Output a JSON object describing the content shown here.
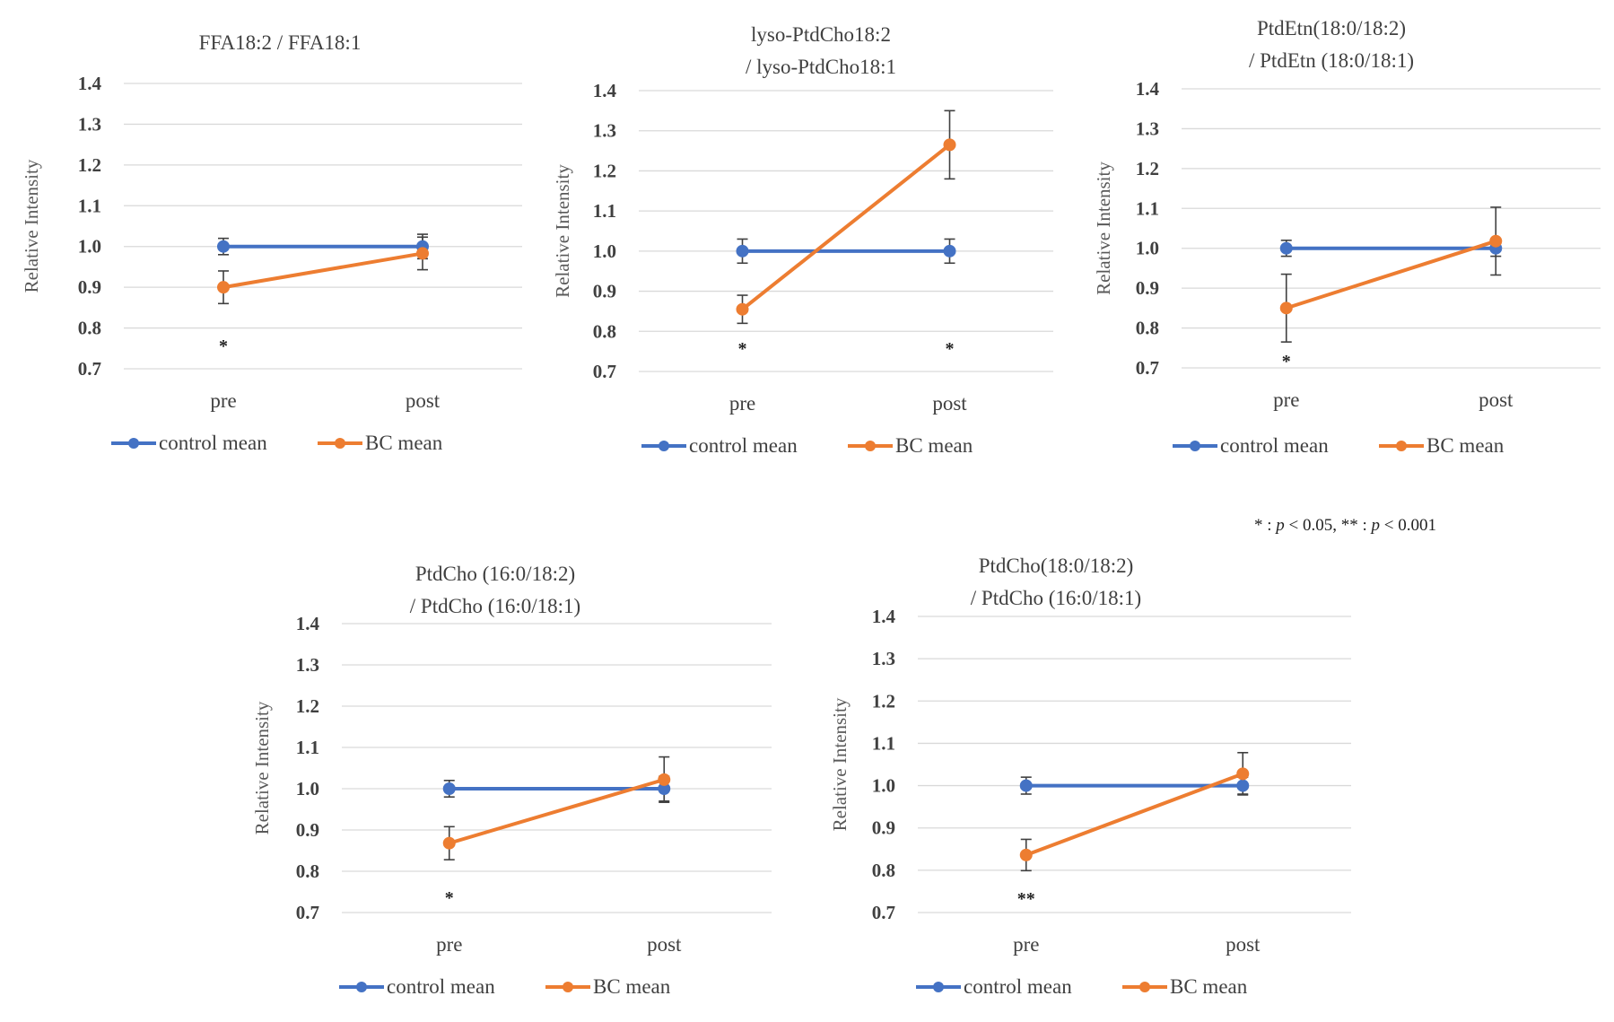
{
  "colors": {
    "control": "#4472C4",
    "bc": "#ED7D31"
  },
  "footnote": {
    "single": "* : ",
    "p1": "p",
    "lt1": " < 0.05,   ** : ",
    "p2": "p",
    "lt2": " < 0.001"
  },
  "chart_data": [
    {
      "type": "line",
      "title": [
        "FFA18:2  / FFA18:1"
      ],
      "ylabel": "Relative  Intensity",
      "ylim": [
        0.7,
        1.4
      ],
      "yticks": [
        "0.7",
        "0.8",
        "0.9",
        "1.0",
        "1.1",
        "1.2",
        "1.3",
        "1.4"
      ],
      "categories": [
        "pre",
        "post"
      ],
      "series": [
        {
          "name": "control mean",
          "values": [
            1.0,
            1.0
          ],
          "err": [
            0.02,
            0.03
          ]
        },
        {
          "name": "BC mean",
          "values": [
            0.9,
            0.983
          ],
          "err": [
            0.04,
            0.04
          ]
        }
      ],
      "significance": [
        "*",
        ""
      ]
    },
    {
      "type": "line",
      "title": [
        "lyso-PtdCho18:2",
        "/ lyso-PtdCho18:1"
      ],
      "ylabel": "Relative  Intensity",
      "ylim": [
        0.7,
        1.4
      ],
      "yticks": [
        "0.7",
        "0.8",
        "0.9",
        "1.0",
        "1.1",
        "1.2",
        "1.3",
        "1.4"
      ],
      "categories": [
        "pre",
        "post"
      ],
      "series": [
        {
          "name": "control mean",
          "values": [
            1.0,
            1.0
          ],
          "err": [
            0.03,
            0.03
          ]
        },
        {
          "name": "BC mean",
          "values": [
            0.855,
            1.265
          ],
          "err": [
            0.035,
            0.085
          ]
        }
      ],
      "significance": [
        "*",
        "*"
      ]
    },
    {
      "type": "line",
      "title": [
        "PtdEtn(18:0/18:2)",
        "/ PtdEtn  (18:0/18:1)"
      ],
      "ylabel": "Relative  Intensity",
      "ylim": [
        0.7,
        1.4
      ],
      "yticks": [
        "0.7",
        "0.8",
        "0.9",
        "1.0",
        "1.1",
        "1.2",
        "1.3",
        "1.4"
      ],
      "categories": [
        "pre",
        "post"
      ],
      "series": [
        {
          "name": "control mean",
          "values": [
            1.0,
            1.0
          ],
          "err": [
            0.02,
            0.02
          ]
        },
        {
          "name": "BC mean",
          "values": [
            0.85,
            1.018
          ],
          "err": [
            0.085,
            0.085
          ]
        }
      ],
      "significance": [
        "*",
        ""
      ]
    },
    {
      "type": "line",
      "title": [
        "PtdCho (16:0/18:2)",
        "/ PtdCho  (16:0/18:1)"
      ],
      "ylabel": "Relative  Intensity",
      "ylim": [
        0.7,
        1.4
      ],
      "yticks": [
        "0.7",
        "0.8",
        "0.9",
        "1.0",
        "1.1",
        "1.2",
        "1.3",
        "1.4"
      ],
      "categories": [
        "pre",
        "post"
      ],
      "series": [
        {
          "name": "control mean",
          "values": [
            1.0,
            1.0
          ],
          "err": [
            0.02,
            0.03
          ]
        },
        {
          "name": "BC mean",
          "values": [
            0.868,
            1.022
          ],
          "err": [
            0.04,
            0.055
          ]
        }
      ],
      "significance": [
        "*",
        ""
      ]
    },
    {
      "type": "line",
      "title": [
        "PtdCho(18:0/18:2)",
        "/ PtdCho  (16:0/18:1)"
      ],
      "ylabel": "Relative  Intensity",
      "ylim": [
        0.7,
        1.4
      ],
      "yticks": [
        "0.7",
        "0.8",
        "0.9",
        "1.0",
        "1.1",
        "1.2",
        "1.3",
        "1.4"
      ],
      "categories": [
        "pre",
        "post"
      ],
      "series": [
        {
          "name": "control mean",
          "values": [
            1.0,
            1.0
          ],
          "err": [
            0.02,
            0.02
          ]
        },
        {
          "name": "BC mean",
          "values": [
            0.836,
            1.028
          ],
          "err": [
            0.037,
            0.05
          ]
        }
      ],
      "significance": [
        "**",
        ""
      ]
    }
  ]
}
